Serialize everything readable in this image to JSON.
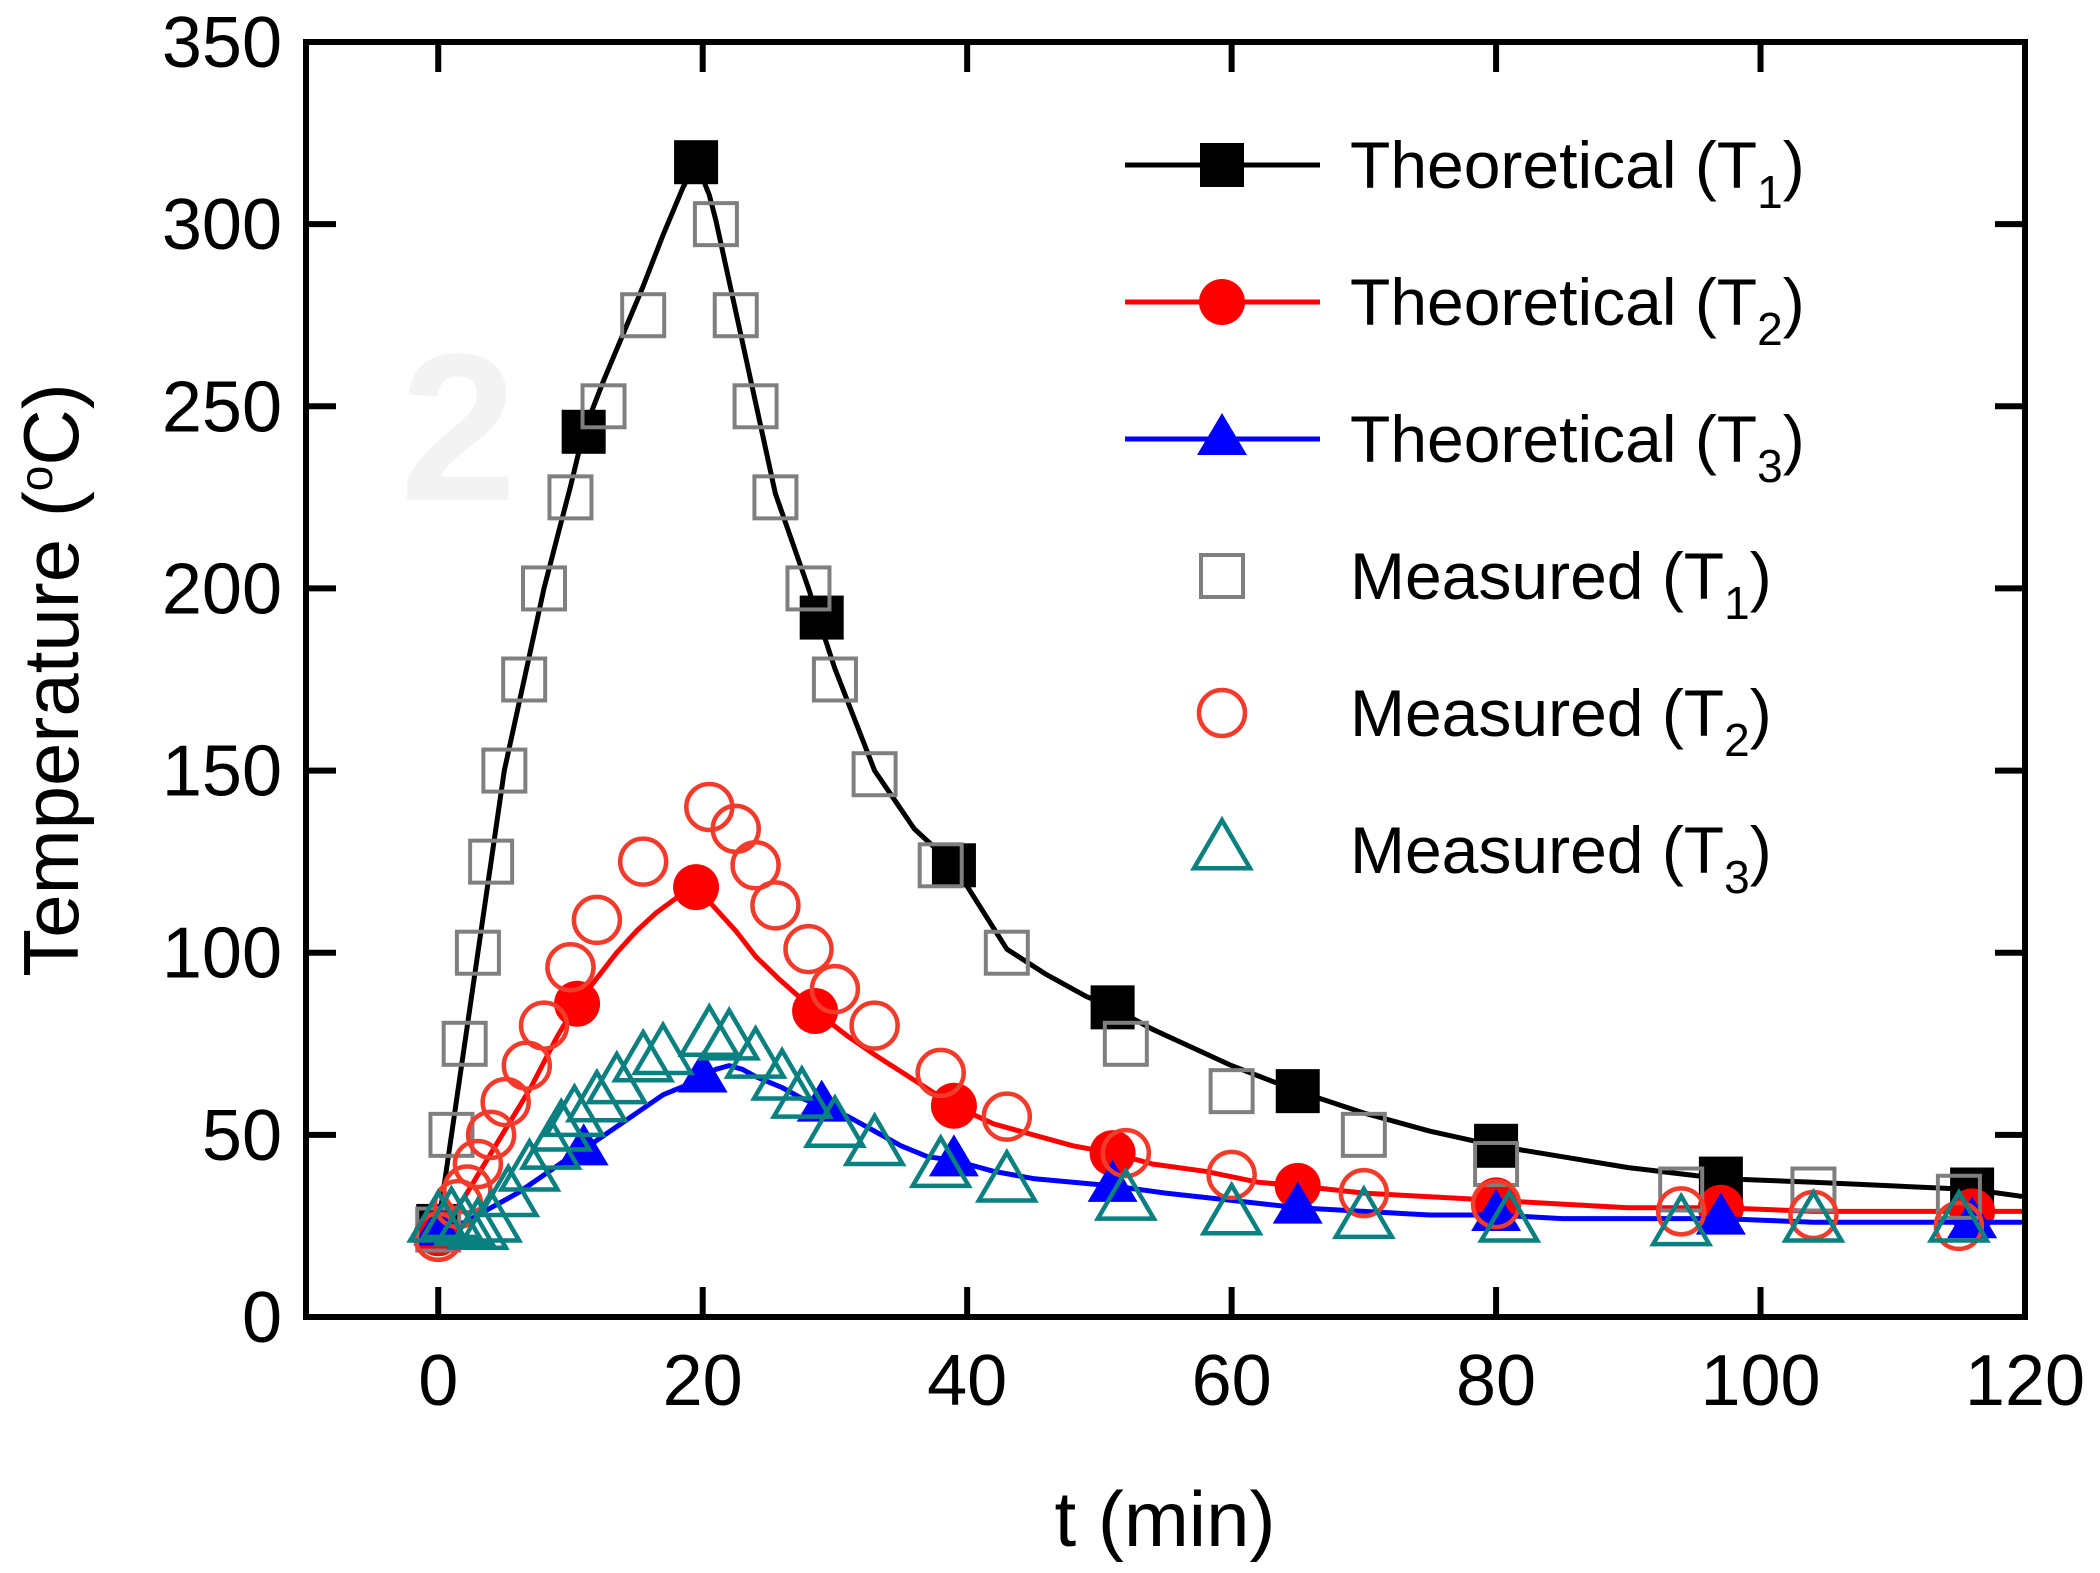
{
  "figure": {
    "kind": "scientific line+scatter plot",
    "background": "#ffffff",
    "watermark": "2"
  },
  "axes": {
    "x": {
      "title": "t (min)",
      "tick_labels": [
        "0",
        "20",
        "40",
        "60",
        "80",
        "100",
        "120"
      ],
      "tick_values": [
        0,
        20,
        40,
        60,
        80,
        100,
        120
      ],
      "range": [
        -10,
        120
      ]
    },
    "y": {
      "title_prefix": "Temperature (",
      "title_sup": "o",
      "title_suffix": "C)",
      "tick_labels": [
        "0",
        "50",
        "100",
        "150",
        "200",
        "250",
        "300",
        "350"
      ],
      "tick_values": [
        0,
        50,
        100,
        150,
        200,
        250,
        300,
        350
      ],
      "range": [
        0,
        350
      ]
    }
  },
  "legend": {
    "position": "upper right",
    "entries": [
      {
        "id": "theoretical-t1",
        "kind": "theoretical",
        "marker": "square",
        "color": "#000000",
        "label_prefix": "Theoretical (T",
        "label_sub": "1",
        "label_suffix": ")"
      },
      {
        "id": "theoretical-t2",
        "kind": "theoretical",
        "marker": "circle",
        "color": "#FF0000",
        "label_prefix": "Theoretical (T",
        "label_sub": "2",
        "label_suffix": ")"
      },
      {
        "id": "theoretical-t3",
        "kind": "theoretical",
        "marker": "triangle",
        "color": "#0000FF",
        "label_prefix": "Theoretical (T",
        "label_sub": "3",
        "label_suffix": ")"
      },
      {
        "id": "measured-t1",
        "kind": "measured",
        "marker": "square",
        "color": "#7F7F7F",
        "label_prefix": "Measured (T",
        "label_sub": "1",
        "label_suffix": ")"
      },
      {
        "id": "measured-t2",
        "kind": "measured",
        "marker": "circle",
        "color": "#F23B2B",
        "label_prefix": "Measured (T",
        "label_sub": "2",
        "label_suffix": ")"
      },
      {
        "id": "measured-t3",
        "kind": "measured",
        "marker": "triangle",
        "color": "#0A8080",
        "label_prefix": "Measured (T",
        "label_sub": "3",
        "label_suffix": ")"
      }
    ]
  },
  "chart_data": {
    "type": "line",
    "title": "",
    "xlabel": "t (min)",
    "ylabel": "Temperature (°C)",
    "xlim": [
      -10,
      120
    ],
    "ylim": [
      0,
      350
    ],
    "grid": false,
    "legend_position": "upper right",
    "series": [
      {
        "name": "Theoretical (T1)",
        "id": "theoretical-t1",
        "role": "theoretical",
        "color": "#000000",
        "marker": "square",
        "filled": true,
        "line_points": [
          [
            0,
            25
          ],
          [
            1,
            50
          ],
          [
            2,
            75
          ],
          [
            3,
            100
          ],
          [
            4,
            125
          ],
          [
            5,
            150
          ],
          [
            6.5,
            175
          ],
          [
            8,
            200
          ],
          [
            9,
            214
          ],
          [
            10,
            228
          ],
          [
            11,
            243
          ],
          [
            12.5,
            257
          ],
          [
            14,
            270
          ],
          [
            15.5,
            283
          ],
          [
            17,
            297
          ],
          [
            18.5,
            310
          ],
          [
            19.5,
            317
          ],
          [
            20.5,
            308
          ],
          [
            21,
            301
          ],
          [
            22.5,
            276
          ],
          [
            24,
            251
          ],
          [
            25.5,
            226
          ],
          [
            28,
            200
          ],
          [
            30,
            178
          ],
          [
            33,
            150
          ],
          [
            36,
            134
          ],
          [
            39,
            124
          ],
          [
            43,
            101
          ],
          [
            46,
            94
          ],
          [
            49,
            88
          ],
          [
            51,
            85
          ],
          [
            54,
            79
          ],
          [
            57,
            74
          ],
          [
            60,
            69
          ],
          [
            65,
            62
          ],
          [
            70,
            56
          ],
          [
            75,
            51
          ],
          [
            80,
            47
          ],
          [
            85,
            44
          ],
          [
            90,
            41
          ],
          [
            97,
            38
          ],
          [
            104,
            37
          ],
          [
            110,
            36
          ],
          [
            116,
            35
          ],
          [
            120,
            33
          ]
        ],
        "marker_points": [
          [
            0,
            25
          ],
          [
            11,
            243
          ],
          [
            19.5,
            317
          ],
          [
            29,
            192
          ],
          [
            39,
            124
          ],
          [
            51,
            85
          ],
          [
            65,
            62
          ],
          [
            80,
            47
          ],
          [
            97,
            38
          ],
          [
            116,
            35
          ]
        ]
      },
      {
        "name": "Theoretical (T2)",
        "id": "theoretical-t2",
        "role": "theoretical",
        "color": "#FF0000",
        "marker": "circle",
        "filled": true,
        "line_points": [
          [
            0,
            23
          ],
          [
            1,
            28
          ],
          [
            2,
            33
          ],
          [
            3,
            39
          ],
          [
            4,
            45
          ],
          [
            5,
            51
          ],
          [
            6,
            57
          ],
          [
            7,
            63
          ],
          [
            8,
            70
          ],
          [
            9,
            77
          ],
          [
            10.5,
            86
          ],
          [
            12,
            93
          ],
          [
            13.5,
            100
          ],
          [
            15,
            106
          ],
          [
            16.5,
            111
          ],
          [
            18,
            115
          ],
          [
            19.5,
            118
          ],
          [
            21,
            112
          ],
          [
            22.5,
            106
          ],
          [
            24,
            99
          ],
          [
            25.7,
            93
          ],
          [
            28.5,
            84
          ],
          [
            31,
            77
          ],
          [
            33,
            72
          ],
          [
            36,
            65
          ],
          [
            39,
            58
          ],
          [
            42,
            53
          ],
          [
            45,
            50
          ],
          [
            48,
            47
          ],
          [
            51,
            45
          ],
          [
            54,
            42
          ],
          [
            58,
            40
          ],
          [
            62,
            37
          ],
          [
            65,
            36
          ],
          [
            70,
            34
          ],
          [
            75,
            33
          ],
          [
            80,
            32
          ],
          [
            85,
            31
          ],
          [
            90,
            30
          ],
          [
            97,
            30
          ],
          [
            104,
            29
          ],
          [
            110,
            29
          ],
          [
            116,
            29
          ],
          [
            120,
            29
          ]
        ],
        "marker_points": [
          [
            0,
            23
          ],
          [
            10.5,
            86
          ],
          [
            19.5,
            118
          ],
          [
            28.5,
            84
          ],
          [
            39,
            58
          ],
          [
            51,
            45
          ],
          [
            65,
            36
          ],
          [
            80,
            32
          ],
          [
            97,
            30
          ],
          [
            116,
            29
          ]
        ]
      },
      {
        "name": "Theoretical (T3)",
        "id": "theoretical-t3",
        "role": "theoretical",
        "color": "#0000FF",
        "marker": "triangle",
        "filled": true,
        "line_points": [
          [
            0,
            24
          ],
          [
            2,
            26
          ],
          [
            4,
            30
          ],
          [
            6,
            34
          ],
          [
            8,
            39
          ],
          [
            10,
            44
          ],
          [
            11,
            46
          ],
          [
            13,
            51
          ],
          [
            15,
            56
          ],
          [
            17,
            61
          ],
          [
            19,
            64
          ],
          [
            20,
            66
          ],
          [
            21,
            68
          ],
          [
            22,
            69
          ],
          [
            23,
            68
          ],
          [
            24,
            66
          ],
          [
            26,
            63
          ],
          [
            27.5,
            60
          ],
          [
            29,
            58
          ],
          [
            31,
            55
          ],
          [
            33,
            51
          ],
          [
            35,
            47
          ],
          [
            37,
            44
          ],
          [
            39,
            43
          ],
          [
            42,
            40
          ],
          [
            45,
            38
          ],
          [
            48,
            37
          ],
          [
            51,
            36
          ],
          [
            55,
            34
          ],
          [
            60,
            32
          ],
          [
            65,
            30
          ],
          [
            70,
            29
          ],
          [
            75,
            28
          ],
          [
            80,
            28
          ],
          [
            85,
            27
          ],
          [
            90,
            27
          ],
          [
            97,
            27
          ],
          [
            104,
            26
          ],
          [
            110,
            26
          ],
          [
            116,
            26
          ],
          [
            120,
            26
          ]
        ],
        "marker_points": [
          [
            0,
            24
          ],
          [
            11,
            46
          ],
          [
            20,
            66
          ],
          [
            29,
            58
          ],
          [
            39,
            43
          ],
          [
            51,
            36
          ],
          [
            65,
            30
          ],
          [
            80,
            28
          ],
          [
            97,
            27
          ],
          [
            116,
            26
          ]
        ]
      },
      {
        "name": "Measured (T1)",
        "id": "measured-t1",
        "role": "measured",
        "color": "#7F7F7F",
        "marker": "square",
        "filled": false,
        "points": [
          [
            0,
            24
          ],
          [
            1,
            50
          ],
          [
            2,
            75
          ],
          [
            3,
            100
          ],
          [
            4,
            125
          ],
          [
            5,
            150
          ],
          [
            6.5,
            175
          ],
          [
            8,
            200
          ],
          [
            10,
            225
          ],
          [
            12.5,
            250
          ],
          [
            15.5,
            275
          ],
          [
            21,
            300
          ],
          [
            22.5,
            275
          ],
          [
            24,
            250
          ],
          [
            25.5,
            225
          ],
          [
            28,
            200
          ],
          [
            30,
            175
          ],
          [
            33,
            149
          ],
          [
            38,
            124
          ],
          [
            43,
            100
          ],
          [
            52,
            75
          ],
          [
            60,
            62
          ],
          [
            70,
            50
          ],
          [
            80,
            42
          ],
          [
            94,
            35
          ],
          [
            104,
            35
          ],
          [
            115,
            33
          ]
        ]
      },
      {
        "name": "Measured (T2)",
        "id": "measured-t2",
        "role": "measured",
        "color": "#F23B2B",
        "marker": "circle",
        "filled": false,
        "points": [
          [
            0,
            22
          ],
          [
            1.5,
            31
          ],
          [
            2.2,
            35
          ],
          [
            3,
            42
          ],
          [
            4,
            50
          ],
          [
            5.1,
            59
          ],
          [
            6.7,
            69
          ],
          [
            8,
            80
          ],
          [
            10,
            96
          ],
          [
            12,
            109
          ],
          [
            15.5,
            125
          ],
          [
            20.5,
            140
          ],
          [
            22.5,
            134
          ],
          [
            24,
            124
          ],
          [
            25.5,
            113
          ],
          [
            28,
            101
          ],
          [
            30,
            90
          ],
          [
            33,
            80
          ],
          [
            38,
            67
          ],
          [
            43,
            55
          ],
          [
            52,
            45
          ],
          [
            60,
            39
          ],
          [
            70,
            34
          ],
          [
            80,
            31
          ],
          [
            94,
            29
          ],
          [
            104,
            28
          ],
          [
            115,
            25
          ]
        ]
      },
      {
        "name": "Measured (T3)",
        "id": "measured-t3",
        "role": "measured",
        "color": "#0A8080",
        "marker": "triangle",
        "filled": false,
        "points": [
          [
            0,
            26
          ],
          [
            1,
            27
          ],
          [
            2,
            25
          ],
          [
            3,
            24
          ],
          [
            4,
            26
          ],
          [
            5.3,
            33
          ],
          [
            6.9,
            40
          ],
          [
            8.5,
            46
          ],
          [
            9.3,
            51
          ],
          [
            10.3,
            55
          ],
          [
            12,
            59
          ],
          [
            13.5,
            64
          ],
          [
            15.5,
            70
          ],
          [
            17,
            72
          ],
          [
            20.5,
            77
          ],
          [
            22,
            76
          ],
          [
            24,
            71
          ],
          [
            26,
            65
          ],
          [
            27.5,
            60
          ],
          [
            30,
            52
          ],
          [
            33,
            47
          ],
          [
            38,
            41
          ],
          [
            43,
            37
          ],
          [
            52,
            32
          ],
          [
            60,
            28
          ],
          [
            70,
            27
          ],
          [
            81,
            26
          ],
          [
            94,
            25
          ],
          [
            104,
            26
          ],
          [
            115,
            26
          ]
        ]
      }
    ]
  }
}
